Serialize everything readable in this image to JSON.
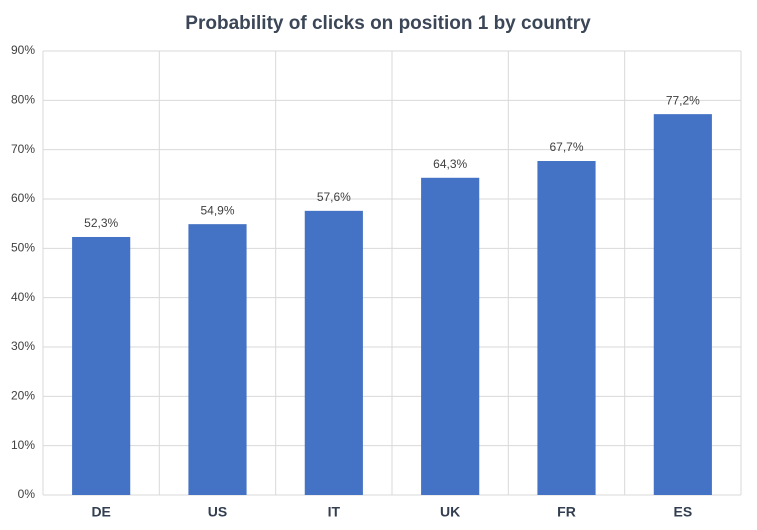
{
  "chart_data": {
    "type": "bar",
    "title": "Probability of clicks on position 1 by country",
    "categories": [
      "DE",
      "US",
      "IT",
      "UK",
      "FR",
      "ES"
    ],
    "values": [
      52.3,
      54.9,
      57.6,
      64.3,
      67.7,
      77.2
    ],
    "value_labels": [
      "52,3%",
      "54,9%",
      "57,6%",
      "64,3%",
      "67,7%",
      "77,2%"
    ],
    "color": "#4472c4",
    "ylim": [
      0,
      90
    ],
    "yticks": [
      {
        "value": 0,
        "label": "0%"
      },
      {
        "value": 10,
        "label": "10%"
      },
      {
        "value": 20,
        "label": "20%"
      },
      {
        "value": 30,
        "label": "30%"
      },
      {
        "value": 40,
        "label": "40%"
      },
      {
        "value": 50,
        "label": "50%"
      },
      {
        "value": 60,
        "label": "60%"
      },
      {
        "value": 70,
        "label": "70%"
      },
      {
        "value": 80,
        "label": "80%"
      },
      {
        "value": 90,
        "label": "90%"
      }
    ],
    "grid": true
  }
}
